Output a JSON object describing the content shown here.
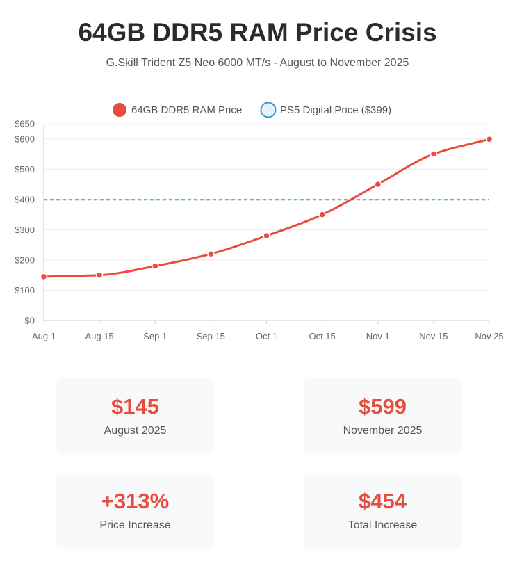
{
  "header": {
    "title": "64GB DDR5 RAM Price Crisis",
    "subtitle": "G.Skill Trident Z5 Neo 6000 MT/s - August to November 2025"
  },
  "chart_data": {
    "type": "line",
    "categories": [
      "Aug 1",
      "Aug 15",
      "Sep 1",
      "Sep 15",
      "Oct 1",
      "Oct 15",
      "Nov 1",
      "Nov 15",
      "Nov 25"
    ],
    "series": [
      {
        "name": "64GB DDR5 RAM Price",
        "color": "#e74c3c",
        "style": "solid-smooth-with-points",
        "values": [
          145,
          150,
          180,
          220,
          280,
          350,
          450,
          550,
          599
        ]
      },
      {
        "name": "PS5 Digital Price ($399)",
        "color": "#3498db",
        "style": "dashed",
        "values": [
          399,
          399,
          399,
          399,
          399,
          399,
          399,
          399,
          399
        ]
      }
    ],
    "ylim": [
      0,
      650
    ],
    "yticks": [
      0,
      100,
      200,
      300,
      400,
      500,
      600,
      650
    ],
    "ytick_labels": [
      "$0",
      "$100",
      "$200",
      "$300",
      "$400",
      "$500",
      "$600",
      "$650"
    ],
    "legend_position": "top-center",
    "grid": true
  },
  "stats": [
    {
      "value": "$145",
      "label": "August 2025"
    },
    {
      "value": "$599",
      "label": "November 2025"
    },
    {
      "value": "+313%",
      "label": "Price Increase"
    },
    {
      "value": "$454",
      "label": "Total Increase"
    }
  ]
}
